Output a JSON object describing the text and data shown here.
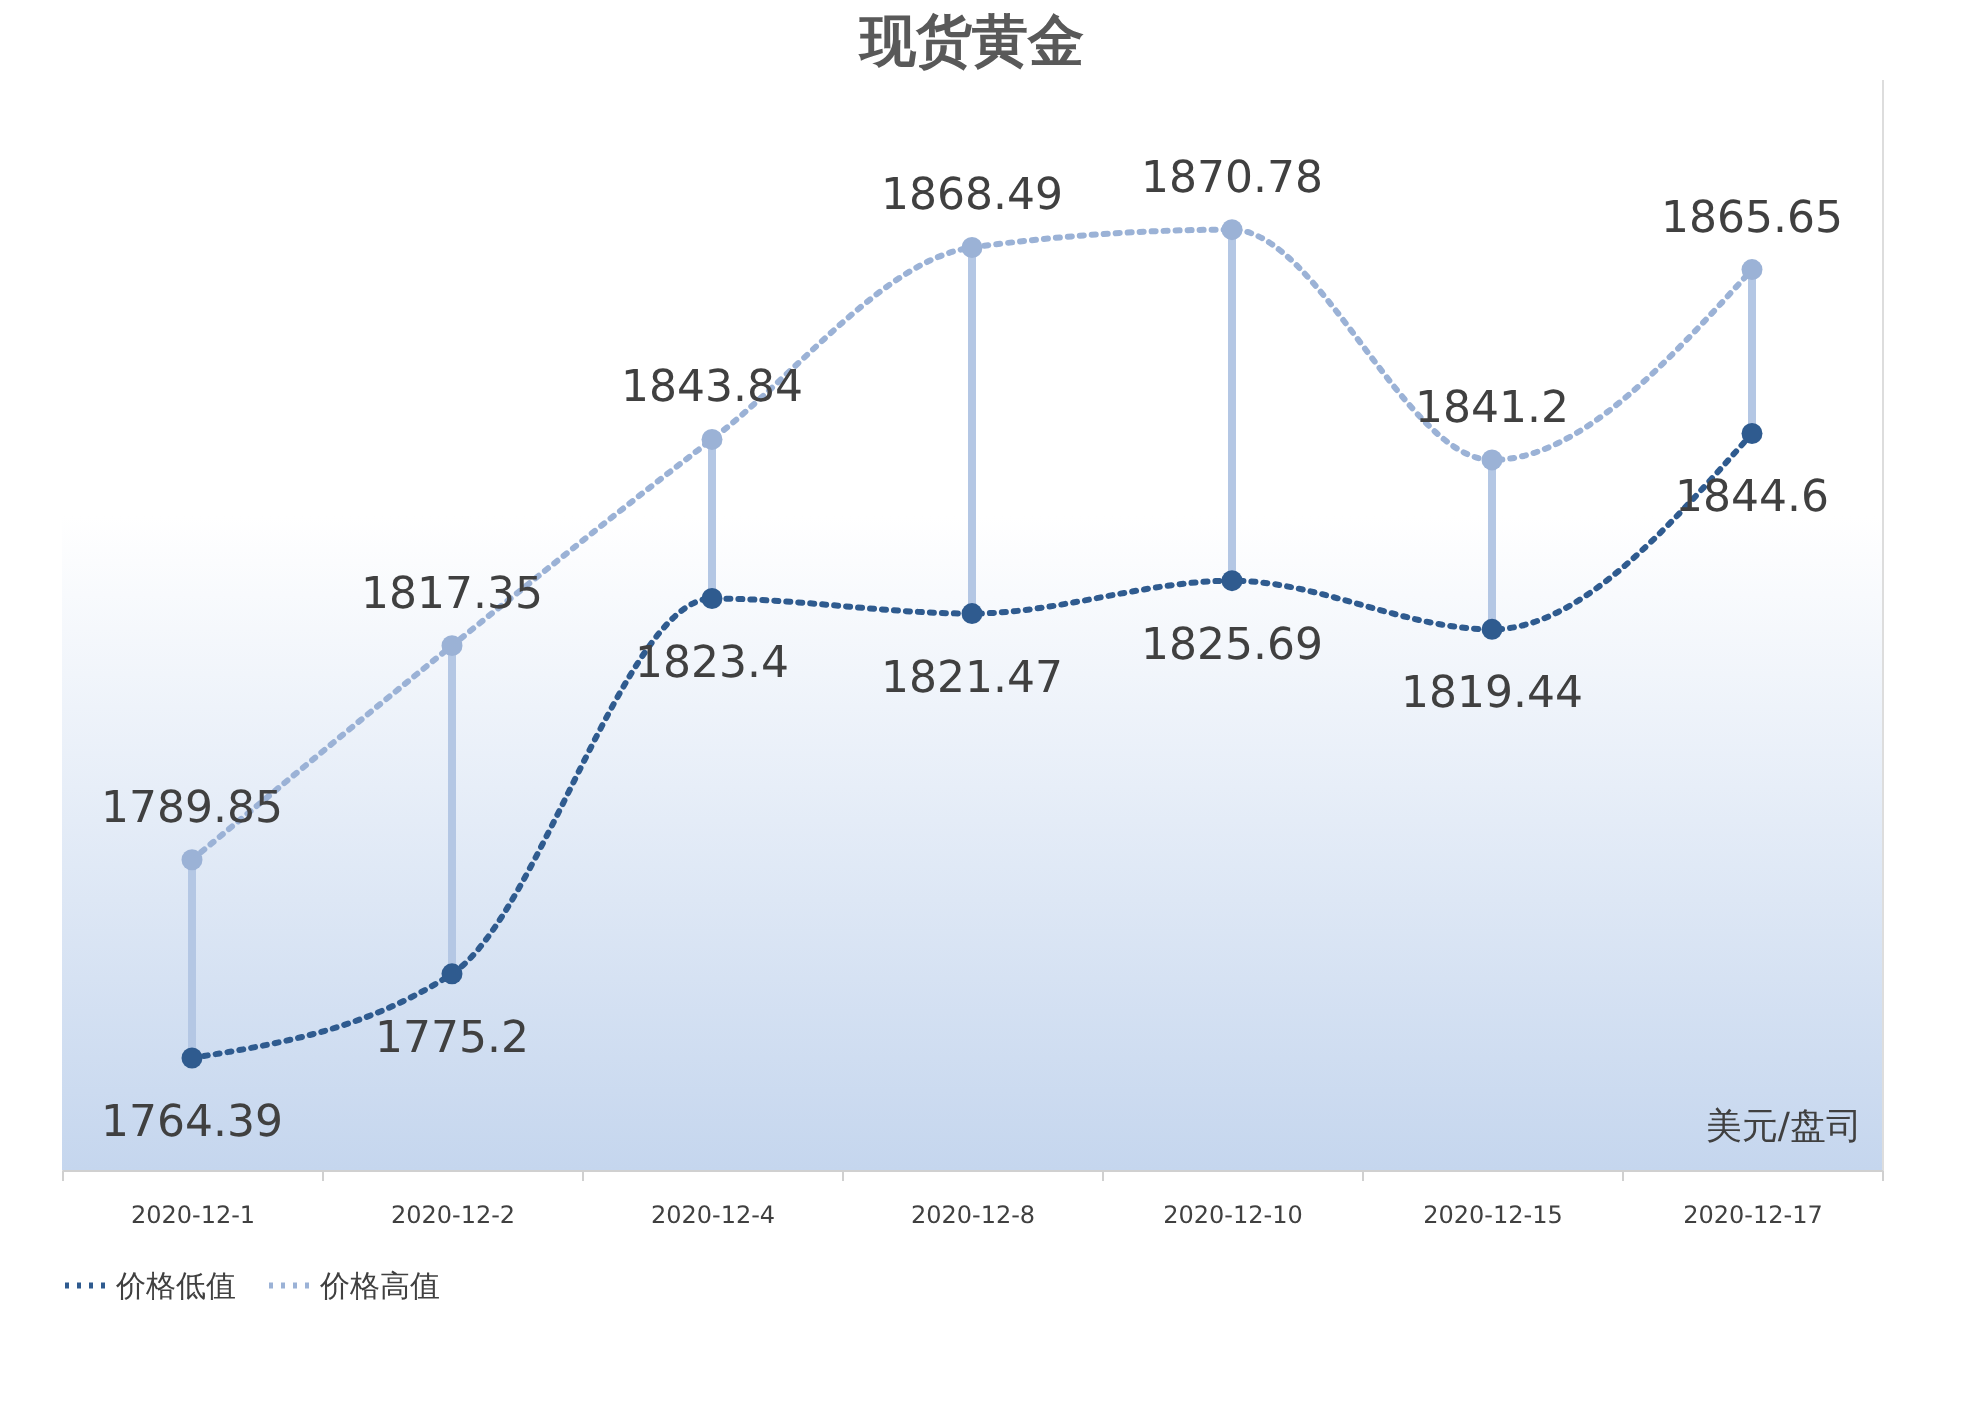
{
  "chart_data": {
    "type": "line",
    "title": "现货黄金",
    "categories": [
      "2020-12-1",
      "2020-12-2",
      "2020-12-4",
      "2020-12-8",
      "2020-12-10",
      "2020-12-15",
      "2020-12-17"
    ],
    "series": [
      {
        "name": "价格低值",
        "color": "#2f5b8f",
        "values": [
          1764.39,
          1775.2,
          1823.4,
          1821.47,
          1825.69,
          1819.44,
          1844.6
        ]
      },
      {
        "name": "价格高值",
        "color": "#9bb2d6",
        "values": [
          1789.85,
          1817.35,
          1843.84,
          1868.49,
          1870.78,
          1841.2,
          1865.65
        ]
      }
    ],
    "annotations": [
      "美元/盘司"
    ],
    "data_labels": true,
    "legend": "bottom",
    "marker": "circle",
    "line_style": "dotted"
  }
}
